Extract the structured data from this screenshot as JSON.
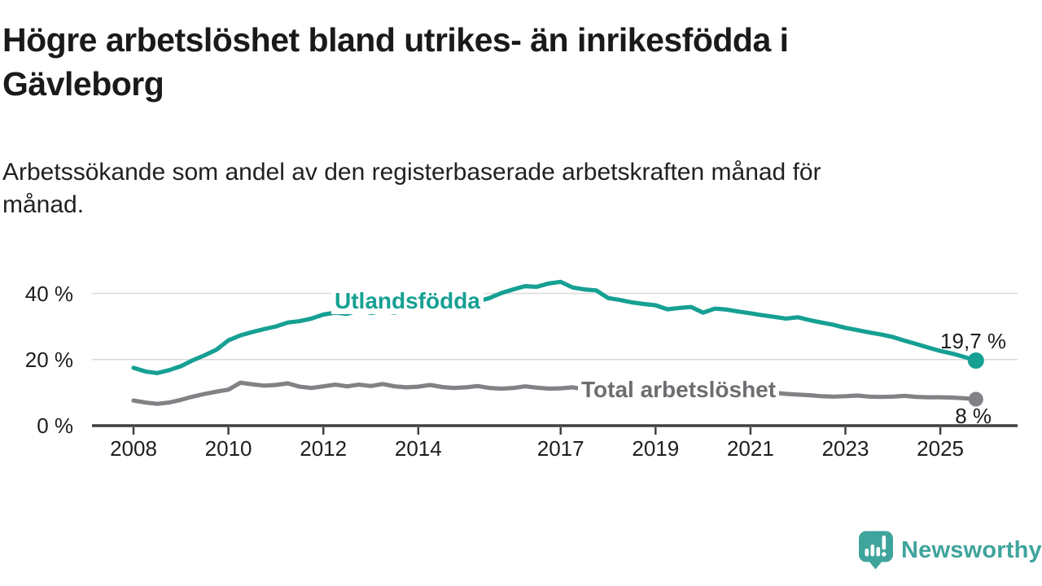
{
  "header": {
    "title": "Högre arbetslöshet bland utrikes- än inrikesfödda i Gävleborg",
    "title_lines": [
      "Högre arbetslöshet bland utrikes- än inrikesfödda i",
      "Gävleborg"
    ],
    "subtitle_lines": [
      "Arbetssökande som andel av den registerbaserade arbetskraften månad för",
      "månad."
    ]
  },
  "chart_data": {
    "type": "line",
    "x_unit": "year",
    "x_start": 2008.0,
    "x_step": 0.25,
    "x_end": 2025.75,
    "xlim": [
      2007.1,
      2026.6
    ],
    "ylim": [
      0,
      46
    ],
    "grid": true,
    "x_ticks": [
      2008,
      2010,
      2012,
      2014,
      2017,
      2019,
      2021,
      2023,
      2025
    ],
    "y_axis": {
      "ticks": [
        {
          "value": 0,
          "label": "0 %"
        },
        {
          "value": 20,
          "label": "20 %"
        },
        {
          "value": 40,
          "label": "40 %"
        }
      ]
    },
    "colors": {
      "grid": "#dadada",
      "axis": "#3f3f3f",
      "tick_text": "#1e1e1e",
      "value_text": "#1c1c1c"
    },
    "series": [
      {
        "name": "Utlandsfödda",
        "color": "#16a093",
        "label_color": "#16a093",
        "end_label": "19,7 %",
        "end_value": 19.7,
        "values": [
          17.5,
          16.4,
          15.9,
          16.8,
          18.0,
          19.8,
          21.3,
          23.0,
          25.8,
          27.3,
          28.3,
          29.2,
          30.0,
          31.2,
          31.6,
          32.4,
          33.6,
          34.2,
          33.8,
          34.9,
          34.1,
          34.6,
          34.2,
          34.9,
          34.6,
          35.3,
          35.1,
          35.9,
          36.4,
          37.6,
          38.6,
          40.1,
          41.2,
          42.2,
          42.0,
          43.0,
          43.5,
          41.8,
          41.2,
          40.9,
          38.6,
          38.0,
          37.3,
          36.8,
          36.4,
          35.2,
          35.6,
          35.9,
          34.2,
          35.4,
          35.1,
          34.5,
          34.0,
          33.4,
          32.9,
          32.4,
          32.8,
          31.9,
          31.2,
          30.5,
          29.6,
          28.9,
          28.2,
          27.6,
          26.8,
          25.7,
          24.7,
          23.6,
          22.6,
          21.8,
          20.8,
          19.7
        ]
      },
      {
        "name": "Total arbetslöshet",
        "color": "#808285",
        "label_color": "#6d6e71",
        "end_label": "8 %",
        "end_value": 8.0,
        "values": [
          7.6,
          7.0,
          6.6,
          7.0,
          7.8,
          8.8,
          9.6,
          10.3,
          10.9,
          13.0,
          12.5,
          12.1,
          12.3,
          12.8,
          11.8,
          11.4,
          11.9,
          12.4,
          11.9,
          12.4,
          12.0,
          12.6,
          11.9,
          11.6,
          11.8,
          12.3,
          11.7,
          11.4,
          11.6,
          12.0,
          11.4,
          11.2,
          11.4,
          11.9,
          11.5,
          11.2,
          11.3,
          11.6,
          11.0,
          10.7,
          10.6,
          10.9,
          10.3,
          10.1,
          10.2,
          10.4,
          10.0,
          9.9,
          10.0,
          11.6,
          11.9,
          11.4,
          11.0,
          10.6,
          10.0,
          9.6,
          9.4,
          9.2,
          8.9,
          8.8,
          8.9,
          9.1,
          8.8,
          8.7,
          8.8,
          9.0,
          8.7,
          8.6,
          8.6,
          8.5,
          8.3,
          8.0
        ]
      }
    ]
  },
  "branding": {
    "logo_text": "Newsworthy",
    "color": "#3fa49c"
  }
}
